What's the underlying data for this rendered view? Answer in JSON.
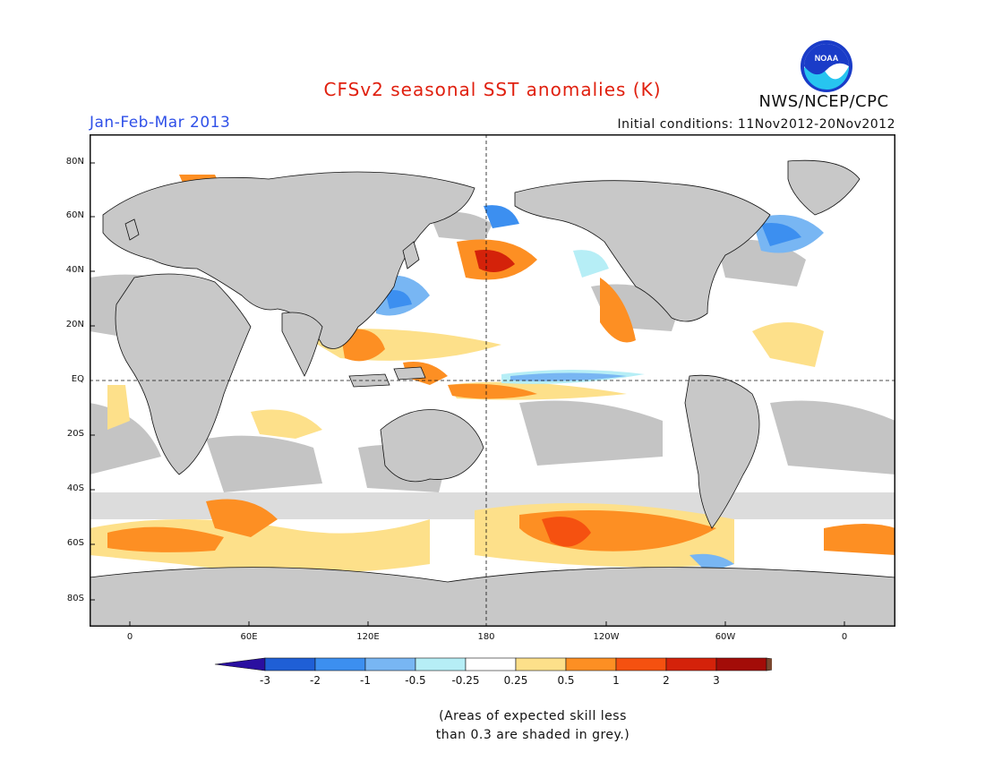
{
  "header": {
    "title": "CFSv2 seasonal SST anomalies (K)",
    "season": "Jan-Feb-Mar 2013",
    "initial_conditions": "Initial conditions: 11Nov2012-20Nov2012",
    "agency": "NWS/NCEP/CPC",
    "logo_text": "NOAA"
  },
  "map": {
    "lat_labels": [
      "80N",
      "60N",
      "40N",
      "20N",
      "EQ",
      "20S",
      "40S",
      "60S",
      "80S"
    ],
    "lon_labels": [
      "0",
      "60E",
      "120E",
      "180",
      "120W",
      "60W",
      "0"
    ],
    "land_color": "#c8c8c8",
    "grey_shade_color": "#c0c0c0"
  },
  "colorbar": {
    "labels": [
      "-3",
      "-2",
      "-1",
      "-0.5",
      "-0.25",
      "0.25",
      "0.5",
      "1",
      "2",
      "3"
    ],
    "colors": [
      "#2a0fa0",
      "#1f5fd6",
      "#3c8ff0",
      "#78b6f3",
      "#b6eef6",
      "#ffffff",
      "#fde08a",
      "#fd8f23",
      "#f55110",
      "#d4220a",
      "#a30c08",
      "#7a4830"
    ]
  },
  "footnote": {
    "line1": "(Areas of expected skill less",
    "line2": "than 0.3 are shaded in grey.)"
  }
}
